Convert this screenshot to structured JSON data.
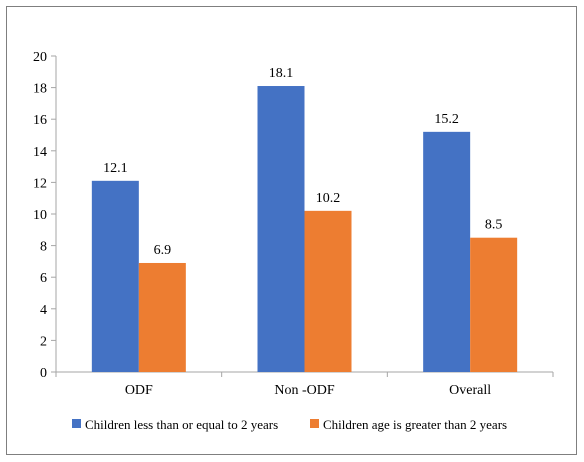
{
  "chart_data": {
    "type": "bar",
    "title": "",
    "xlabel": "",
    "ylabel": "",
    "ylim": [
      0,
      20
    ],
    "yticks": [
      0,
      2,
      4,
      6,
      8,
      10,
      12,
      14,
      16,
      18,
      20
    ],
    "grid": false,
    "legend_position": "bottom",
    "categories": [
      "ODF",
      "Non -ODF",
      "Overall"
    ],
    "series": [
      {
        "name": "Children less than or equal to 2 years",
        "color": "#4472C4",
        "values": [
          12.1,
          18.1,
          15.2
        ]
      },
      {
        "name": "Children age is greater than 2 years",
        "color": "#ED7D31",
        "values": [
          6.9,
          10.2,
          8.5
        ]
      }
    ]
  }
}
